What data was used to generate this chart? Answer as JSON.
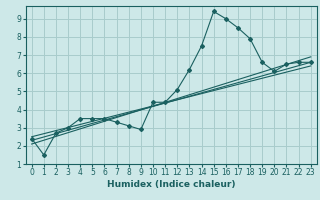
{
  "xlabel": "Humidex (Indice chaleur)",
  "bg_color": "#cde8e8",
  "grid_color": "#a8cccc",
  "line_color": "#1a6060",
  "xlim": [
    -0.5,
    23.5
  ],
  "ylim": [
    1,
    9.7
  ],
  "xticks": [
    0,
    1,
    2,
    3,
    4,
    5,
    6,
    7,
    8,
    9,
    10,
    11,
    12,
    13,
    14,
    15,
    16,
    17,
    18,
    19,
    20,
    21,
    22,
    23
  ],
  "yticks": [
    1,
    2,
    3,
    4,
    5,
    6,
    7,
    8,
    9
  ],
  "series": [
    [
      0,
      2.4
    ],
    [
      1,
      1.5
    ],
    [
      2,
      2.7
    ],
    [
      3,
      3.0
    ],
    [
      4,
      3.5
    ],
    [
      5,
      3.5
    ],
    [
      6,
      3.5
    ],
    [
      7,
      3.3
    ],
    [
      8,
      3.1
    ],
    [
      9,
      2.9
    ],
    [
      10,
      4.4
    ],
    [
      11,
      4.4
    ],
    [
      12,
      5.1
    ],
    [
      13,
      6.2
    ],
    [
      14,
      7.5
    ],
    [
      15,
      9.4
    ],
    [
      16,
      9.0
    ],
    [
      17,
      8.5
    ],
    [
      18,
      7.9
    ],
    [
      19,
      6.6
    ],
    [
      20,
      6.1
    ],
    [
      21,
      6.5
    ],
    [
      22,
      6.6
    ],
    [
      23,
      6.6
    ]
  ],
  "trend_lines": [
    {
      "x": [
        0,
        23
      ],
      "y": [
        2.1,
        6.9
      ]
    },
    {
      "x": [
        0,
        23
      ],
      "y": [
        2.3,
        6.6
      ]
    },
    {
      "x": [
        0,
        23
      ],
      "y": [
        2.5,
        6.4
      ]
    }
  ]
}
